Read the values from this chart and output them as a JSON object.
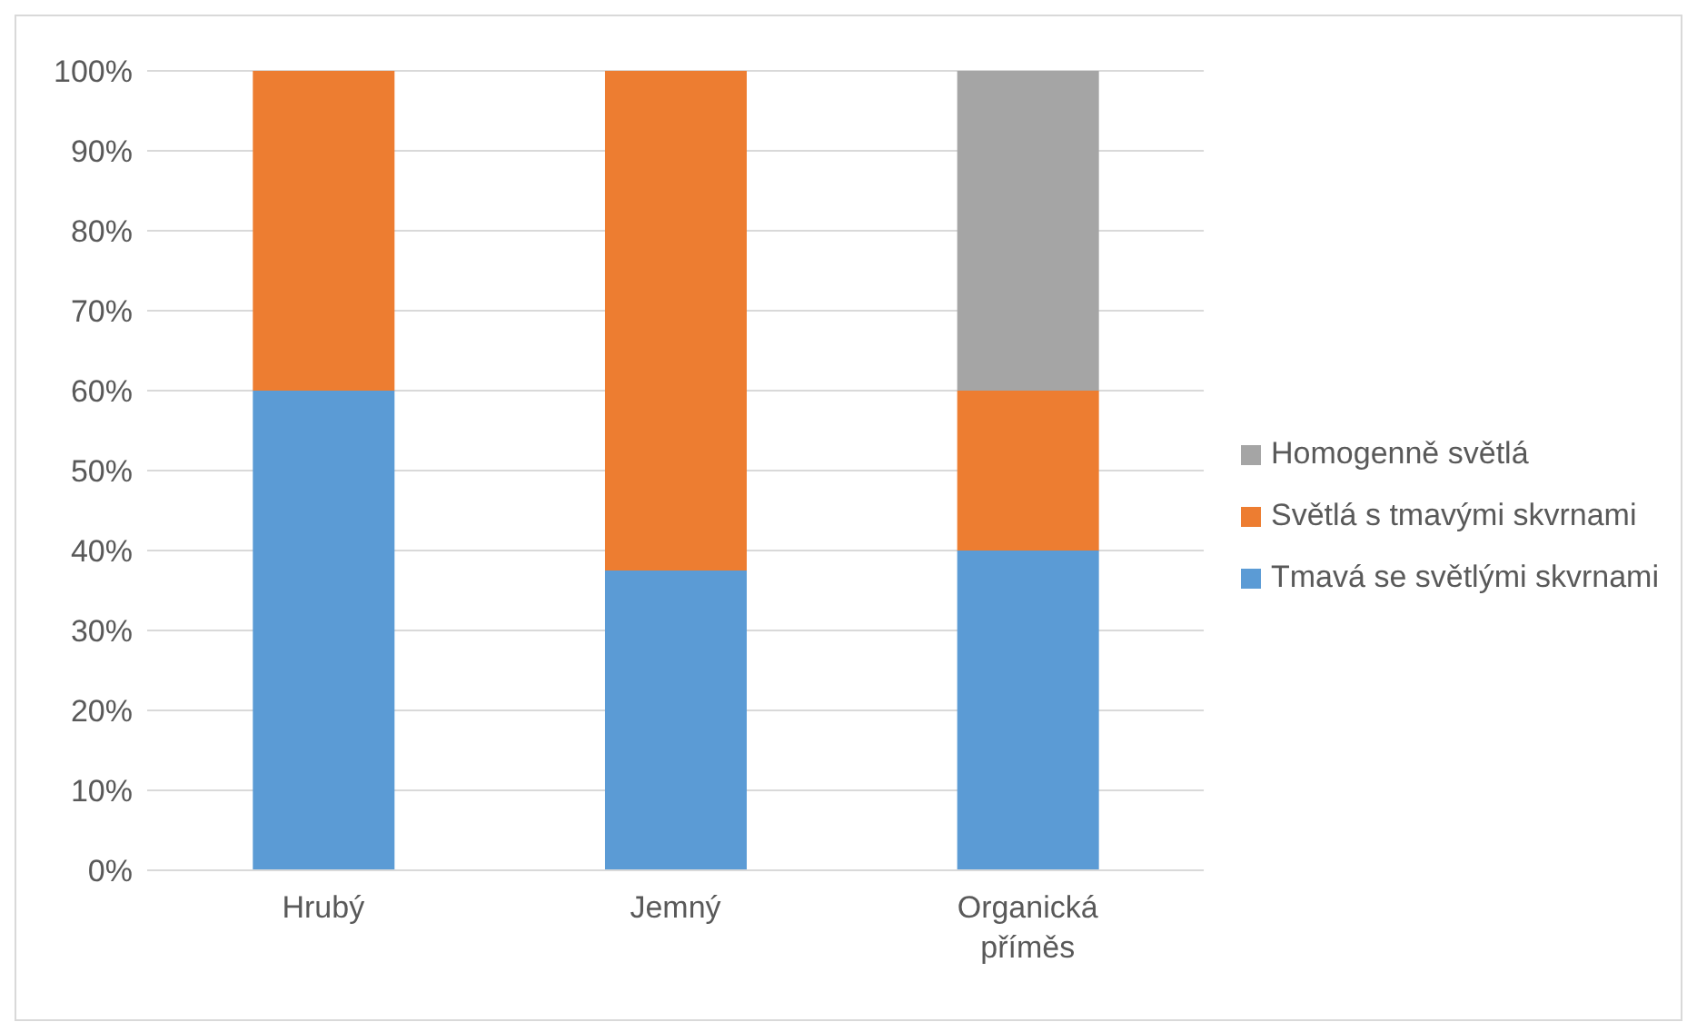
{
  "chart_data": {
    "type": "bar",
    "stacked": true,
    "categories": [
      "Hrubý",
      "Jemný",
      "Organická příměs"
    ],
    "series": [
      {
        "name": "Tmavá se světlými skvrnami",
        "color": "#5b9bd5",
        "values": [
          60,
          37.5,
          40
        ]
      },
      {
        "name": "Světlá s tmavými skvrnami",
        "color": "#ed7d31",
        "values": [
          40,
          62.5,
          20
        ]
      },
      {
        "name": "Homogenně světlá",
        "color": "#a5a5a5",
        "values": [
          0,
          0,
          40
        ]
      }
    ],
    "ylim": [
      0,
      100
    ],
    "yticks": [
      {
        "value": 0,
        "label": "0%"
      },
      {
        "value": 10,
        "label": "10%"
      },
      {
        "value": 20,
        "label": "20%"
      },
      {
        "value": 30,
        "label": "30%"
      },
      {
        "value": 40,
        "label": "40%"
      },
      {
        "value": 50,
        "label": "50%"
      },
      {
        "value": 60,
        "label": "60%"
      },
      {
        "value": 70,
        "label": "70%"
      },
      {
        "value": 80,
        "label": "80%"
      },
      {
        "value": 90,
        "label": "90%"
      },
      {
        "value": 100,
        "label": "100%"
      }
    ],
    "grid": "y",
    "legend": "right"
  }
}
